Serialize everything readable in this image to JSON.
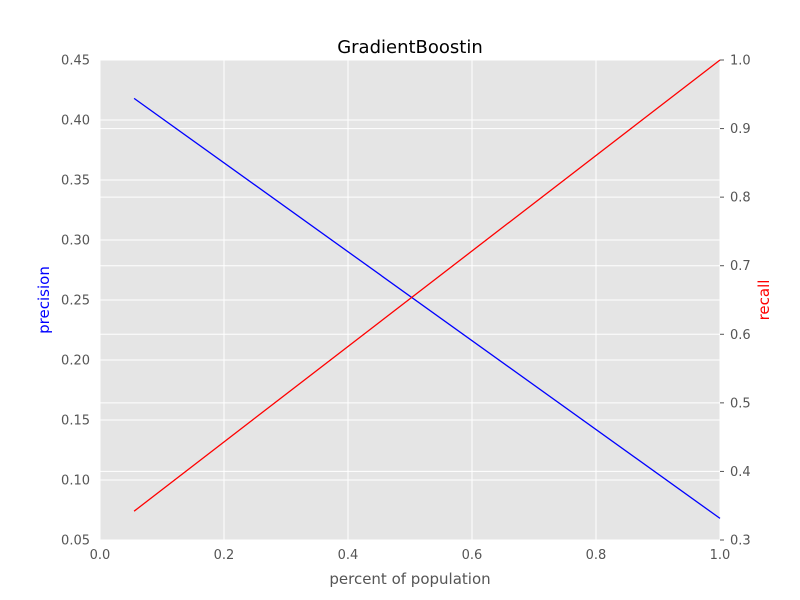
{
  "chart_data": {
    "type": "line",
    "title": "GradientBoostin",
    "xlabel": "percent of population",
    "ylabel_left": "precision",
    "ylabel_right": "recall",
    "xlim": [
      0.0,
      1.0
    ],
    "ylim_left": [
      0.05,
      0.45
    ],
    "ylim_right": [
      0.3,
      1.0
    ],
    "x_ticks": [
      "0.0",
      "0.2",
      "0.4",
      "0.6",
      "0.8",
      "1.0"
    ],
    "y_left_ticks": [
      "0.05",
      "0.10",
      "0.15",
      "0.20",
      "0.25",
      "0.30",
      "0.35",
      "0.40",
      "0.45"
    ],
    "y_right_ticks": [
      "0.3",
      "0.4",
      "0.5",
      "0.6",
      "0.7",
      "0.8",
      "0.9",
      "1.0"
    ],
    "grid": true,
    "background": "#e5e5e5",
    "series": [
      {
        "axis": "left",
        "color": "#0000ff",
        "x": [
          0.055,
          1.0
        ],
        "y": [
          0.418,
          0.068
        ]
      },
      {
        "axis": "right",
        "color": "#ff0000",
        "x": [
          0.055,
          1.0
        ],
        "y": [
          0.342,
          1.0
        ]
      }
    ]
  }
}
